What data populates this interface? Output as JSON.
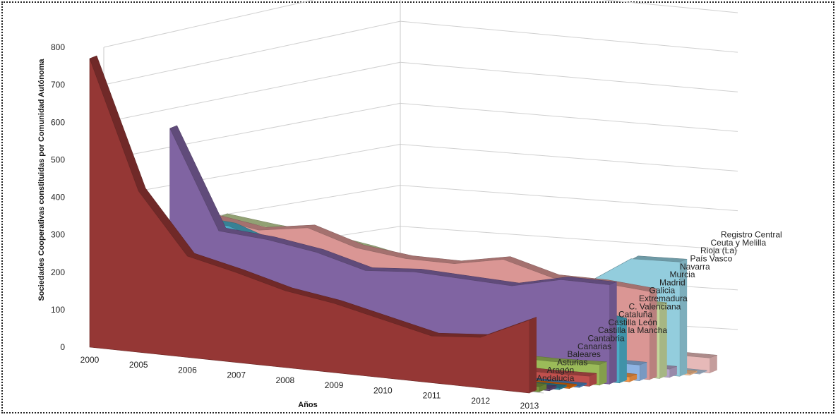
{
  "chart_data": {
    "type": "area",
    "subtype": "3d-area",
    "ylabel": "Sociedades Cooperativas constituidas por Comunidad Autónoma",
    "xlabel": "Años",
    "ylim": [
      0,
      800
    ],
    "yticks": [
      "0",
      "100",
      "200",
      "300",
      "400",
      "500",
      "600",
      "700",
      "800"
    ],
    "categories": [
      "2000",
      "2005",
      "2006",
      "2007",
      "2008",
      "2009",
      "2010",
      "2011",
      "2012",
      "2013"
    ],
    "series": [
      {
        "name": "Andalucía",
        "color": "#953735",
        "values": [
          770,
          430,
          270,
          240,
          205,
          185,
          155,
          125,
          135,
          195
        ]
      },
      {
        "name": "Aragón",
        "color": "#77933c",
        "values": [
          25,
          22,
          20,
          18,
          16,
          15,
          14,
          13,
          12,
          14
        ]
      },
      {
        "name": "Asturias",
        "color": "#604a7b",
        "values": [
          8,
          7,
          7,
          6,
          6,
          5,
          5,
          5,
          5,
          6
        ]
      },
      {
        "name": "Baleares",
        "color": "#31859c",
        "values": [
          6,
          6,
          5,
          5,
          5,
          5,
          4,
          4,
          4,
          5
        ]
      },
      {
        "name": "Canarias",
        "color": "#e46c0a",
        "values": [
          5,
          5,
          4,
          4,
          4,
          4,
          4,
          3,
          3,
          4
        ]
      },
      {
        "name": "Cantabria",
        "color": "#4f81bd",
        "values": [
          6,
          5,
          5,
          5,
          4,
          4,
          4,
          3,
          3,
          4
        ]
      },
      {
        "name": "Castilla la Mancha",
        "color": "#c0504d",
        "values": [
          40,
          36,
          34,
          32,
          30,
          28,
          26,
          25,
          24,
          27
        ]
      },
      {
        "name": "Castilla León",
        "color": "#9bbb59",
        "values": [
          90,
          80,
          75,
          70,
          65,
          60,
          55,
          50,
          50,
          55
        ]
      },
      {
        "name": "Cataluña",
        "color": "#8064a2",
        "values": [
          560,
          300,
          290,
          270,
          235,
          245,
          240,
          235,
          265,
          265
        ]
      },
      {
        "name": "C. Valenciana",
        "color": "#4bacc6",
        "values": [
          320,
          310,
          265,
          245,
          225,
          215,
          205,
          195,
          185,
          165
        ]
      },
      {
        "name": "Extremadura",
        "color": "#f79646",
        "values": [
          20,
          18,
          17,
          16,
          15,
          14,
          13,
          12,
          12,
          13
        ]
      },
      {
        "name": "Galicia",
        "color": "#8eb4e3",
        "values": [
          60,
          55,
          52,
          50,
          47,
          45,
          43,
          41,
          40,
          42
        ]
      },
      {
        "name": "Madrid",
        "color": "#da9694",
        "values": [
          310,
          290,
          310,
          270,
          255,
          255,
          280,
          245,
          245,
          235
        ]
      },
      {
        "name": "Murcia",
        "color": "#c3d69b",
        "values": [
          310,
          295,
          285,
          265,
          240,
          240,
          220,
          200,
          195,
          195
        ]
      },
      {
        "name": "Navarra",
        "color": "#b3a2c7",
        "values": [
          30,
          28,
          26,
          25,
          24,
          23,
          22,
          21,
          20,
          22
        ]
      },
      {
        "name": "País Vasco",
        "color": "#93cddd",
        "values": [
          100,
          90,
          85,
          80,
          190,
          230,
          225,
          215,
          300,
          305
        ]
      },
      {
        "name": "Rioja (La)",
        "color": "#fac090",
        "values": [
          5,
          5,
          4,
          4,
          4,
          4,
          3,
          3,
          3,
          4
        ]
      },
      {
        "name": "Ceuta y Melilla",
        "color": "#b9cde5",
        "values": [
          2,
          2,
          2,
          2,
          2,
          2,
          2,
          1,
          1,
          2
        ]
      },
      {
        "name": "Registro Central",
        "color": "#e6b9b8",
        "values": [
          60,
          55,
          50,
          48,
          45,
          43,
          42,
          40,
          38,
          40
        ]
      }
    ],
    "grid": true,
    "legend": "series labels along depth axis"
  }
}
